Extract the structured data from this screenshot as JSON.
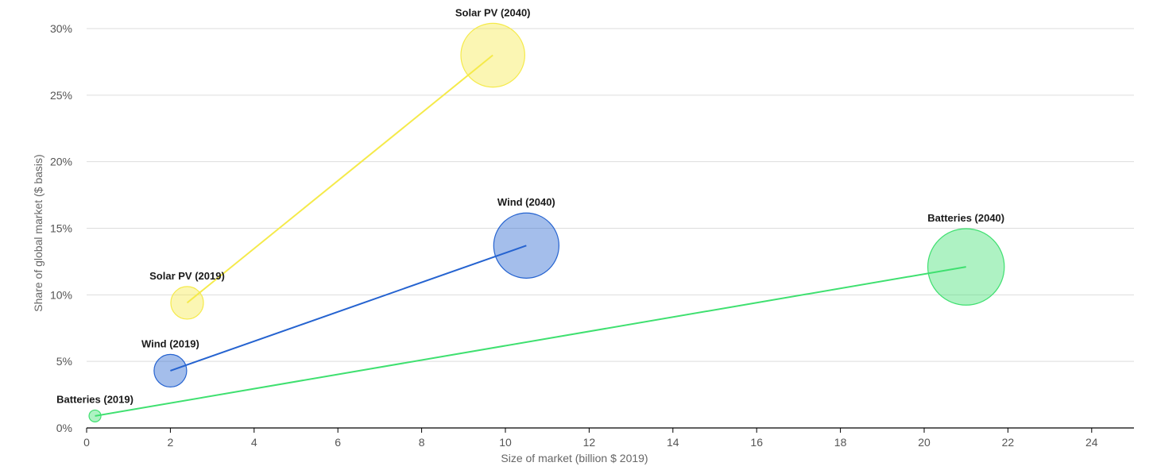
{
  "chart_data": {
    "type": "scatter",
    "subtype": "bubble-trajectory",
    "xlabel": "Size of market (billion $ 2019)",
    "ylabel": "Share of global market ($ basis)",
    "xlim": [
      0,
      25
    ],
    "ylim": [
      0,
      30
    ],
    "x_ticks": [
      0,
      2,
      4,
      6,
      8,
      10,
      12,
      14,
      16,
      18,
      20,
      22,
      24
    ],
    "y_ticks": [
      0,
      5,
      10,
      15,
      20,
      25,
      30
    ],
    "y_tick_suffix": "%",
    "grid": "horizontal",
    "series": [
      {
        "name": "Solar PV",
        "color": "#f5ea4a",
        "points": [
          {
            "label": "Solar PV (2019)",
            "x": 2.4,
            "y": 9.4,
            "size": 0.6
          },
          {
            "label": "Solar PV (2040)",
            "x": 9.7,
            "y": 28.0,
            "size": 2.3
          }
        ]
      },
      {
        "name": "Wind",
        "color": "#2563d0",
        "points": [
          {
            "label": "Wind (2019)",
            "x": 2.0,
            "y": 4.3,
            "size": 0.6
          },
          {
            "label": "Wind (2040)",
            "x": 10.5,
            "y": 13.7,
            "size": 2.4
          }
        ]
      },
      {
        "name": "Batteries",
        "color": "#3fe070",
        "points": [
          {
            "label": "Batteries (2019)",
            "x": 0.2,
            "y": 0.9,
            "size": 0.08
          },
          {
            "label": "Batteries (2040)",
            "x": 21.0,
            "y": 12.1,
            "size": 3.3
          }
        ]
      }
    ]
  }
}
